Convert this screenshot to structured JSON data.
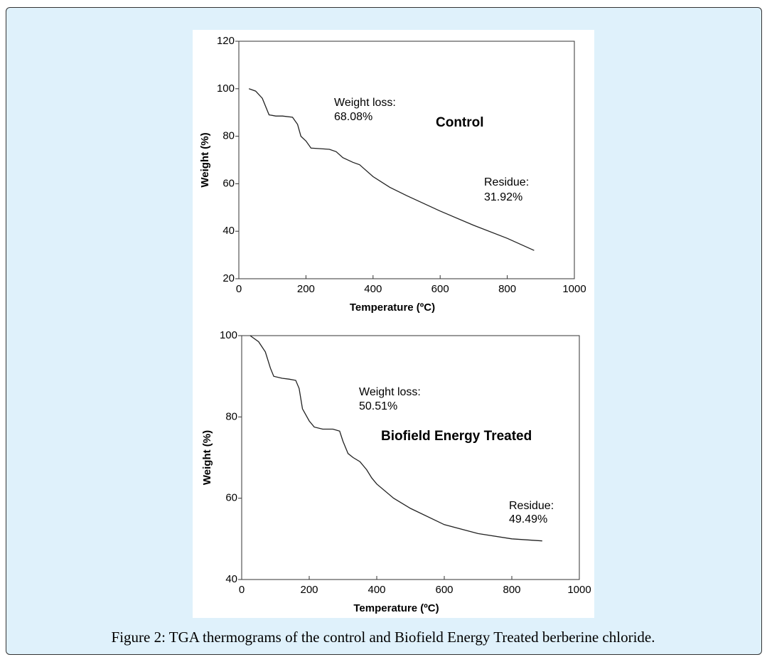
{
  "caption": "Figure 2: TGA thermograms of the control and Biofield Energy Treated berberine chloride.",
  "chart_data": [
    {
      "type": "line",
      "xlabel": "Temperature (ºC)",
      "ylabel": "Weight (%)",
      "annotations": [
        "Weight loss:",
        "68.08%",
        "Residue:",
        "31.92%"
      ],
      "x": [
        30,
        50,
        70,
        90,
        110,
        130,
        160,
        175,
        185,
        200,
        215,
        240,
        270,
        290,
        310,
        340,
        360,
        400,
        450,
        500,
        600,
        700,
        800,
        880
      ],
      "series": [
        {
          "name": "Control",
          "color": "#222222",
          "values": [
            100,
            99,
            96,
            89,
            88.5,
            88.5,
            88,
            85,
            80,
            78,
            75,
            74.8,
            74.5,
            73.5,
            71,
            69,
            68,
            63,
            58.5,
            55,
            48.5,
            42.5,
            37,
            31.92
          ]
        }
      ],
      "xlim": [
        0,
        1000
      ],
      "xticks": [
        0,
        200,
        400,
        600,
        800,
        1000
      ],
      "ylim": [
        20,
        120
      ],
      "yticks": [
        20,
        40,
        60,
        80,
        100,
        120
      ]
    },
    {
      "type": "line",
      "xlabel": "Temperature (ºC)",
      "ylabel": "Weight (%)",
      "annotations": [
        "Weight loss:",
        "50.51%",
        "Residue:",
        "49.49%"
      ],
      "x": [
        25,
        50,
        70,
        85,
        95,
        120,
        140,
        160,
        170,
        180,
        200,
        215,
        240,
        270,
        290,
        300,
        315,
        330,
        350,
        370,
        385,
        400,
        450,
        500,
        600,
        700,
        800,
        890
      ],
      "series": [
        {
          "name": "Biofield Energy Treated",
          "color": "#222222",
          "values": [
            100,
            98.5,
            96,
            92,
            90,
            89.5,
            89.3,
            89,
            87,
            82,
            79,
            77.5,
            77,
            77,
            76.5,
            74,
            71,
            70,
            69,
            67,
            65,
            63.5,
            60,
            57.5,
            53.5,
            51.3,
            50,
            49.49
          ]
        }
      ],
      "xlim": [
        0,
        1000
      ],
      "xticks": [
        0,
        200,
        400,
        600,
        800,
        1000
      ],
      "ylim": [
        40,
        100
      ],
      "yticks": [
        40,
        60,
        80,
        100
      ]
    }
  ]
}
